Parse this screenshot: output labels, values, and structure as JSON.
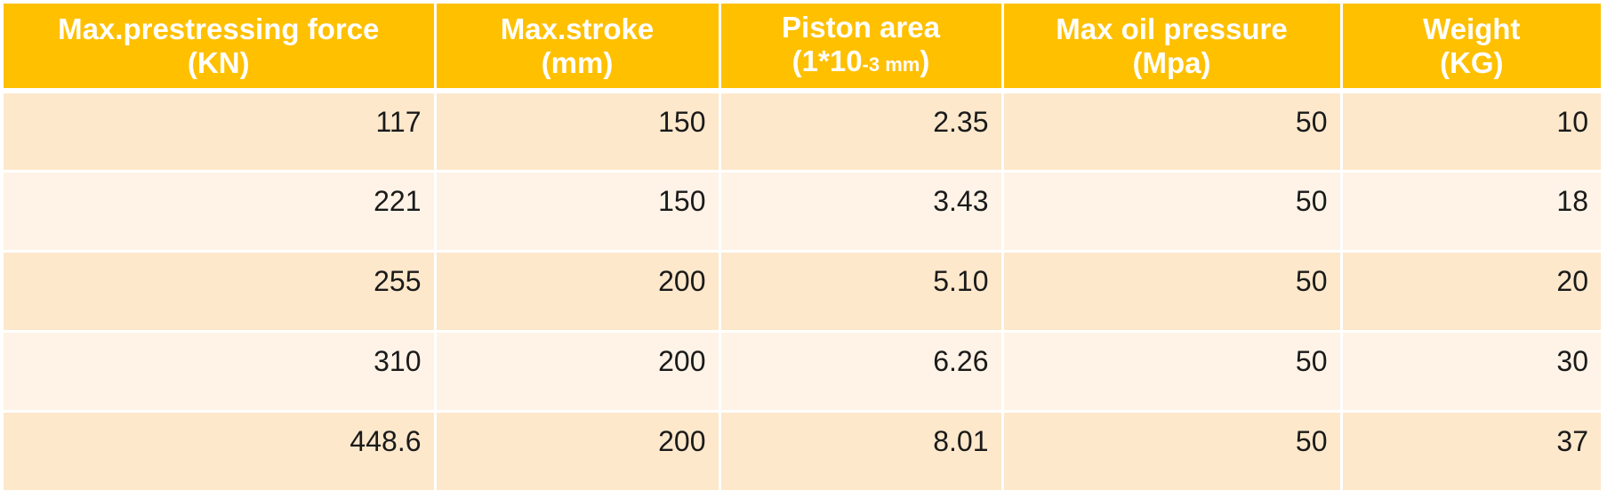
{
  "table": {
    "headers": [
      {
        "line1": "Max.prestressing force",
        "line2": "(KN)"
      },
      {
        "line1": "Max.stroke",
        "line2": "(mm)"
      },
      {
        "line1": "Piston area",
        "line2_pre": "(1*10",
        "line2_small": "-3 mm",
        "line2_post": ")"
      },
      {
        "line1": "Max oil pressure",
        "line2": "(Mpa)"
      },
      {
        "line1": "Weight",
        "line2": "(KG)"
      }
    ],
    "rows": [
      [
        "117",
        "150",
        "2.35",
        "50",
        "10"
      ],
      [
        "221",
        "150",
        "3.43",
        "50",
        "18"
      ],
      [
        "255",
        "200",
        "5.10",
        "50",
        "20"
      ],
      [
        "310",
        "200",
        "6.26",
        "50",
        "30"
      ],
      [
        "448.6",
        "200",
        "8.01",
        "50",
        "37"
      ]
    ]
  },
  "colors": {
    "header_bg": "#ffc000",
    "row_odd_bg": "#fde8cb",
    "row_even_bg": "#fef3e6"
  }
}
